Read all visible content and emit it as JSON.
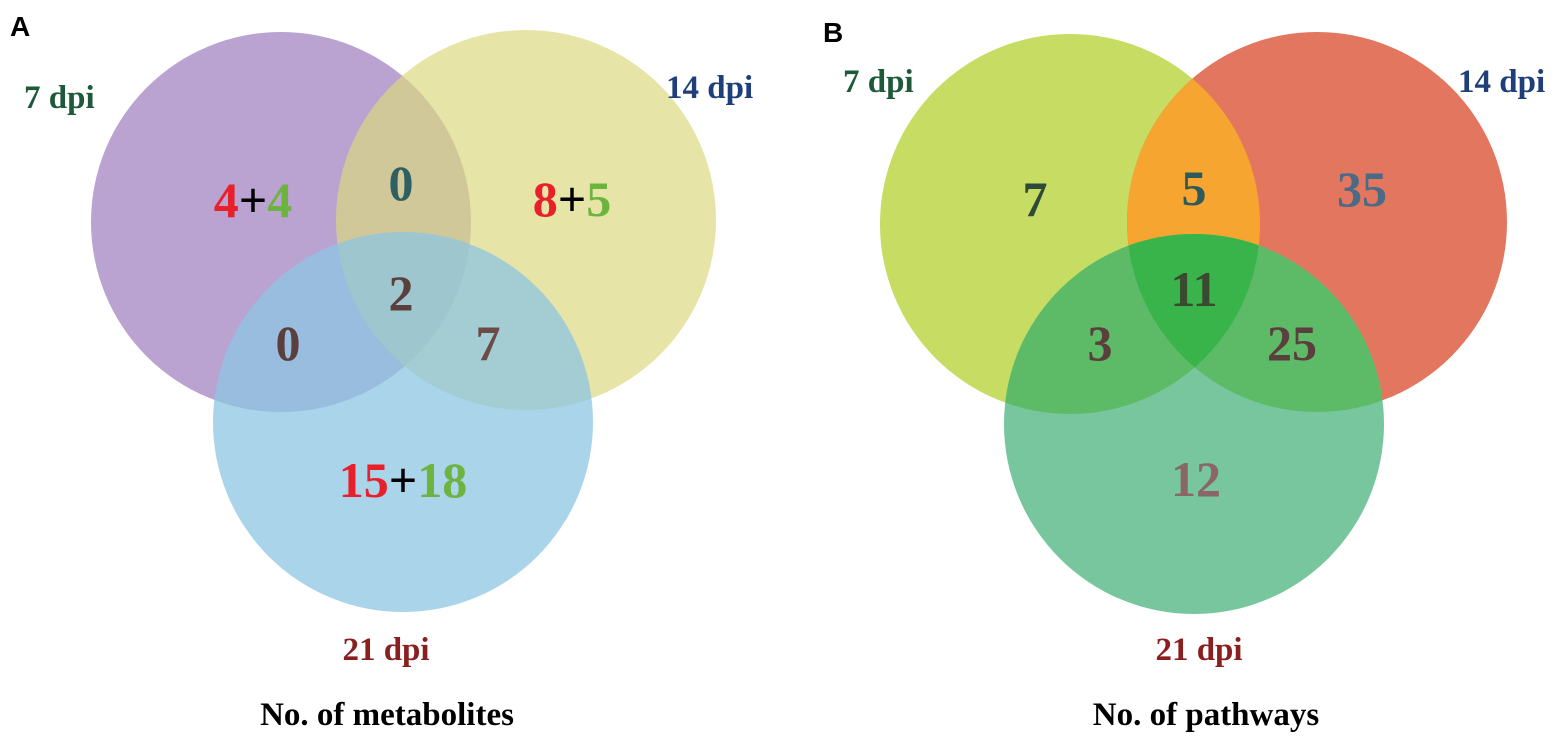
{
  "panels": [
    {
      "letter": "A",
      "caption": "No. of metabolites",
      "sets": [
        {
          "label": "7 dpi",
          "fill": "#a98bc6",
          "label_color": "#1e5a3a"
        },
        {
          "label": "14 dpi",
          "fill": "#dcd882",
          "label_color": "#1f3f7a"
        },
        {
          "label": "21 dpi",
          "fill": "#8cc6e2",
          "label_color": "#8a1f1f"
        }
      ],
      "regions": {
        "only_7": [
          {
            "text": "4",
            "color": "#e8202a"
          },
          {
            "text": "+",
            "color": "#000000"
          },
          {
            "text": "4",
            "color": "#6db33f"
          }
        ],
        "only_14": [
          {
            "text": "8",
            "color": "#e8202a"
          },
          {
            "text": "+",
            "color": "#000000"
          },
          {
            "text": "5",
            "color": "#6db33f"
          }
        ],
        "only_21": [
          {
            "text": "15",
            "color": "#e8202a"
          },
          {
            "text": "+",
            "color": "#000000"
          },
          {
            "text": "18",
            "color": "#6db33f"
          }
        ],
        "ab": [
          {
            "text": "0",
            "color": "#2f5f62"
          }
        ],
        "ac": [
          {
            "text": "0",
            "color": "#5a3f3c"
          }
        ],
        "bc": [
          {
            "text": "7",
            "color": "#6b4a48"
          }
        ],
        "abc": [
          {
            "text": "2",
            "color": "#5a3f3c"
          }
        ]
      }
    },
    {
      "letter": "B",
      "caption": "No. of pathways",
      "sets": [
        {
          "label": "7 dpi",
          "fill": "#c6dc62",
          "label_color": "#1e5a3a"
        },
        {
          "label": "14 dpi",
          "fill": "#e3765f",
          "label_color": "#1f3f7a"
        },
        {
          "label": "21 dpi",
          "fill": "#78c69e",
          "label_color": "#8a1f1f"
        }
      ],
      "overlap_colors": {
        "ab": "#f5a530",
        "ac": "#5dbb68",
        "bc": "#5dbb68",
        "abc": "#38b44a"
      },
      "regions": {
        "only_7": [
          {
            "text": "7",
            "color": "#2e4a38"
          }
        ],
        "only_14": [
          {
            "text": "35",
            "color": "#4a6a86"
          }
        ],
        "only_21": [
          {
            "text": "12",
            "color": "#8a6666"
          }
        ],
        "ab": [
          {
            "text": "5",
            "color": "#2e5a5a"
          }
        ],
        "ac": [
          {
            "text": "3",
            "color": "#5a3f3c"
          }
        ],
        "bc": [
          {
            "text": "25",
            "color": "#5a3f3c"
          }
        ],
        "abc": [
          {
            "text": "11",
            "color": "#3a4a30"
          }
        ]
      }
    }
  ]
}
